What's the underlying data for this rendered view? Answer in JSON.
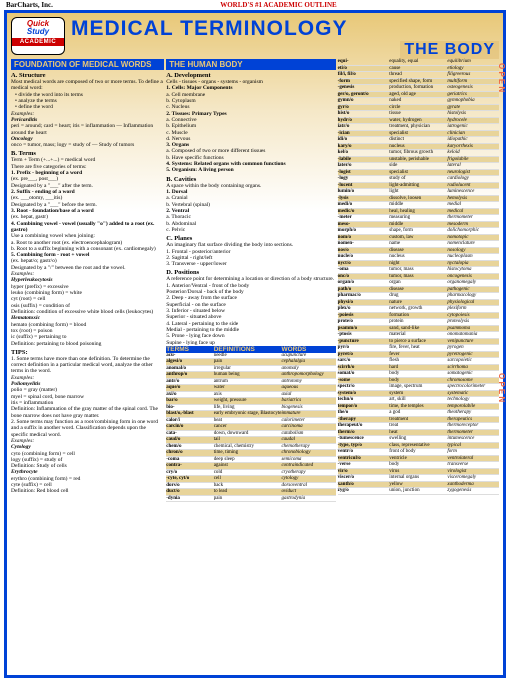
{
  "top": {
    "pub": "BarCharts, Inc.",
    "tag": "WORLD'S #1 ACADEMIC OUTLINE"
  },
  "title": {
    "line1": "MEDICAL TERMINOLOGY",
    "line2": "THE BODY"
  },
  "badge": {
    "q": "Quick",
    "s": "Study",
    "a": "ACADEMIC"
  },
  "edge": {
    "a": "O P E N",
    "b": "O P E N"
  },
  "s1": {
    "h": "FOUNDATION OF MEDICAL WORDS"
  },
  "s2": {
    "h": "THE HUMAN BODY"
  },
  "th": {
    "a": "TERMS",
    "b": "DEFINITIONS",
    "c": "WORDS"
  },
  "A": {
    "h": "A. Structure",
    "p1": "Most medical words are composed of two or more terms. To define a medical word:",
    "b1": "divide the word into its terms",
    "b2": "analyze the terms",
    "b3": "define the word",
    "ex": "Examples:",
    "peri": "Pericarditis",
    "pd": "peri = around; card = heart; itis = inflammation — Inflammation around the heart",
    "onc": "Oncology",
    "od": "onco = tumor, mass; logy = study of — Study of tumors",
    "bt": "B. Terms",
    "bt1": "Term + Term (+...+...) = medical word",
    "bt2": "There are five categories of terms:",
    "t1": "1. Prefix - beginning of a word",
    "t1e": "(ex. pre___, post___)",
    "t1d": "Designated by a \"___\" after the term.",
    "t2": "2. Suffix - ending of a word",
    "t2e": "(ex. ___otomy, ___itis)",
    "t2d": "Designated by a \"___\" before the term.",
    "t3": "3. Root - foundation/base of a word",
    "t3e": "(ex. hepat, gastr)",
    "t4": "4. Combining vowel - vowel (usually \"o\") added to a root (ex. gastro)",
    "t4a": "Use a combining vowel when joining:",
    "t4b": "a. Root to another root (ex. electroencephalogram)",
    "t4c": "b. Root to a suffix beginning with a consonant (ex. cardiomegaly)",
    "t5": "5. Combining form - root + vowel",
    "t5e": "(ex. hepat/o; gastr/o)",
    "t5d": "Designated by a \"/\" between the root and the vowel.",
    "hl": "Hyperleukocytosis",
    "hl1": "hyper (prefix) = excessive",
    "hl2": "leuko (combining form) = white",
    "hl3": "cyt (root) = cell",
    "hl4": "osis (suffix) = condition of",
    "hl5": "Definition: condition of excessive white blood cells (leukocytes)",
    "hm": "Hematotoxic",
    "hm1": "hemato (combining form) = blood",
    "hm2": "tox (root) = poison",
    "hm3": "ic (suffix) = pertaining to",
    "hm4": "Definition: pertaining to blood poisoning",
    "tips": "TIPS:",
    "tp1": "1. Some terms have more than one definition. To determine the correct definition in a particular medical word, analyze the other terms in the word.",
    "pol": "Poliomyelitis",
    "pl1": "polio = gray (matter)",
    "pl2": "myel = spinal cord, bone marrow",
    "pl3": "itis = inflammation",
    "pl4": "Definition: Inflammation of the gray matter of the spinal cord. The bone marrow does not have gray matter.",
    "tp2": "2. Some terms may function as a root/combining form in one word and a suffix in another word. Classification depends upon the specific medical word.",
    "cy": "Cytology",
    "cy1": "cyto (combining form) = cell",
    "cy2": "logy (suffix) = study of",
    "cy3": "Definition: Study of cells",
    "er": "Erythrocyte",
    "er1": "erythro (combining form) = red",
    "er2": "cyte (suffix) = cell",
    "er3": "Definition: Red blood cell"
  },
  "D": {
    "h": "A. Development",
    "p": "Cells - tissues - organs - systems - organism",
    "c1": "1. Cells: Major Components",
    "ca": "a. Cell membrane",
    "cb": "b. Cytoplasm",
    "cc": "c. Nucleus",
    "c2": "2. Tissues: Primary Types",
    "ta": "a. Connective",
    "tb": "b. Epithelium",
    "tc": "c. Muscle",
    "td": "d. Nervous",
    "c3": "3. Organs",
    "oa": "a. Composed of two or more different tissues",
    "ob": "b. Have specific functions",
    "c4": "4. Systems: Related organs with common functions",
    "c5": "5. Organism: A living person",
    "bh": "B. Cavities",
    "bp": "A space within the body containing organs.",
    "b1": "1. Dorsal",
    "b1a": "a. Cranial",
    "b1b": "b. Vertebral (spinal)",
    "b2": "2. Ventral",
    "b2a": "a. Thoracic",
    "b2b": "b. Abdominal",
    "b2c": "c. Pelvic",
    "ph": "C. Planes",
    "pp": "An imaginary flat surface dividing the body into sections.",
    "p1": "1. Frontal - posterior/anterior",
    "p2": "2. Sagittal - right/left",
    "p3": "3. Transverse - upper/lower",
    "dh": "D. Positions",
    "dp": "A reference point for determining a location or direction of a body structure.",
    "d1": "1. Anterior/Ventral - front of the body",
    "d2": "Posterior/Dorsal - back of the body",
    "d3": "2. Deep - away from the surface",
    "d4": "Superficial - on the surface",
    "d5": "3. Inferior - situated below",
    "d6": "Superior - situated above",
    "d7": "4. Lateral - pertaining to the side",
    "d8": "Medial - pertaining to the middle",
    "d9": "5. Prone - lying face down",
    "d10": "Supine - lying face up"
  },
  "T1": [
    [
      "acu-",
      "needle",
      "acupuncture"
    ],
    [
      "algesi/o",
      "pain",
      "cephalalgia"
    ],
    [
      "anomal/o",
      "irregular",
      "anomaly"
    ],
    [
      "anthrop/o",
      "human being",
      "anthropomorphology"
    ],
    [
      "antr/o",
      "antrum",
      "antrotomy"
    ],
    [
      "aque/o",
      "water",
      "aqueous"
    ],
    [
      "axi/o",
      "axis",
      "axial"
    ],
    [
      "bar/o",
      "weight, pressure",
      "bariatrics"
    ],
    [
      "bio-",
      "life, living",
      "biogenesis"
    ],
    [
      "blast/o,-blast",
      "early embryonic stage, Blastocyte",
      "immature"
    ],
    [
      "calor/i",
      "heat",
      "calorimeter"
    ],
    [
      "carcin/o",
      "cancer",
      "carcinoma"
    ],
    [
      "cata-",
      "down, downward",
      "catabolism"
    ],
    [
      "caud/o",
      "tail",
      "caudal"
    ],
    [
      "chem/o",
      "chemical, chemistry",
      "chemotherapy"
    ],
    [
      "chron/o",
      "time, timing",
      "chronobiology"
    ],
    [
      "-coma",
      "deep sleep",
      "semicoma"
    ],
    [
      "contra-",
      "against",
      "contraindicated"
    ],
    [
      "cry/o",
      "cold",
      "cryotherapy"
    ],
    [
      "-cyte, cyt/o",
      "cell",
      "cytology"
    ],
    [
      "dors/o",
      "back",
      "dorsoventral"
    ],
    [
      "duct/o",
      "to lead",
      "oviduct"
    ],
    [
      "-dynia",
      "pain",
      "gastrodynia"
    ]
  ],
  "T2": [
    [
      "equi-",
      "equality, equal",
      "equilibrium"
    ],
    [
      "eti/o",
      "cause",
      "etiology"
    ],
    [
      "fil/i, fil/o",
      "thread",
      "filigreerous"
    ],
    [
      "-form",
      "specified shape, form",
      "multiform"
    ],
    [
      "-genesis",
      "production, formation",
      "osteogenesis"
    ],
    [
      "ger/o, geront/o",
      "aged, old age",
      "geriatrics"
    ],
    [
      "gymn/o",
      "naked",
      "gymnophobia"
    ],
    [
      "gyr/o",
      "circle",
      "gyrate"
    ],
    [
      "hist/o",
      "tissue",
      "histolysis"
    ],
    [
      "hydr/o",
      "water, hydrogen",
      "hydrocele"
    ],
    [
      "iatr/o",
      "treatment, physician",
      "iatrogenic"
    ],
    [
      "-ician",
      "specialist",
      "clinician"
    ],
    [
      "idi/o",
      "distinct",
      "idiopathic"
    ],
    [
      "kary/o",
      "nucleus",
      "karyorrhexis"
    ],
    [
      "kel/o",
      "tumor, fibrous growth",
      "keloid"
    ],
    [
      "-labile",
      "unstable, perishable",
      "frigolabile"
    ],
    [
      "later/o",
      "side",
      "lateral"
    ],
    [
      "-logist",
      "specialist",
      "neurologist"
    ],
    [
      "-logy",
      "study of",
      "cardiology"
    ],
    [
      "-lucent",
      "light-admitting",
      "radiolucent"
    ],
    [
      "lumin/o",
      "light",
      "luminescence"
    ],
    [
      "-lysis",
      "dissolve, loosen",
      "hemolysis"
    ],
    [
      "medi/o",
      "middle",
      "medial"
    ],
    [
      "medic/o",
      "heal, healing",
      "medical"
    ],
    [
      "-meter",
      "measuring",
      "thermometer"
    ],
    [
      "meso-",
      "middle",
      "mesoderm"
    ],
    [
      "morph/o",
      "shape, form",
      "dolichomorphic"
    ],
    [
      "nom/o",
      "custom, law",
      "nomotopic"
    ],
    [
      "nomen-",
      "name",
      "nomenclature"
    ],
    [
      "nos/o",
      "disease",
      "nosology"
    ],
    [
      "nucle/o",
      "nucleus",
      "nucleoplasm"
    ],
    [
      "nyct/o",
      "night",
      "nyctalopia"
    ],
    [
      "-oma",
      "tumor, mass",
      "histocytoma"
    ],
    [
      "onc/o",
      "tumor, mass",
      "oncogenesis"
    ],
    [
      "organ/o",
      "organ",
      "organomegaly"
    ],
    [
      "path/o",
      "disease",
      "pathogenic"
    ],
    [
      "pharmac/o",
      "drug",
      "pharmacology"
    ],
    [
      "physi/o",
      "nature",
      "physiological"
    ],
    [
      "plex/o",
      "network, growth",
      "plexiform"
    ],
    [
      "-poiesis",
      "formation",
      "cytopoiesis"
    ],
    [
      "prote/o",
      "protein",
      "proteolysis"
    ],
    [
      "psamm/o",
      "sand, sand-like",
      "psammoma"
    ],
    [
      "-ptosis",
      "material",
      "onomatomania"
    ],
    [
      "-puncture",
      "to pierce a surface",
      "venipuncture"
    ],
    [
      "pyr/o",
      "fire, fever, heat",
      "pyrogen"
    ],
    [
      "pyret/o",
      "fever",
      "pyretrogenic"
    ],
    [
      "sarc/o",
      "flesh",
      "sarcopoietic"
    ],
    [
      "scirrh/o",
      "hard",
      "scirrhoma"
    ],
    [
      "somat/o",
      "body",
      "somatogenic"
    ],
    [
      "-some",
      "body",
      "chromosome"
    ],
    [
      "spectr/o",
      "image, spectrum",
      "spectrocolorimeter"
    ],
    [
      "system/o",
      "system",
      "systematic"
    ],
    [
      "techn/o",
      "art, skill",
      "technology"
    ],
    [
      "tempor/o",
      "time, the temples",
      "temporolabile"
    ],
    [
      "the/o",
      "a god",
      "theotherapy"
    ],
    [
      "-therapy",
      "treatment",
      "therapeutics"
    ],
    [
      "therapeut/o",
      "treat",
      "thermoreceptor"
    ],
    [
      "therm/o",
      "heat",
      "thermometer"
    ],
    [
      "-tumescence",
      "swelling",
      "intumescence"
    ],
    [
      "-type, typ/o",
      "class, representative",
      "typical"
    ],
    [
      "ventr/o",
      "front of body",
      "form"
    ],
    [
      "ventricul/o",
      "ventricle",
      "ventrolateral"
    ],
    [
      "-verse",
      "body",
      "transverse"
    ],
    [
      "vir/o",
      "virus",
      "virologist"
    ],
    [
      "viscer/o",
      "internal organs",
      "visceromegaly"
    ],
    [
      "xanth/o",
      "yellow",
      "xanthoderma"
    ],
    [
      "zyg/o",
      "union, junction",
      "zygogenesis"
    ]
  ]
}
